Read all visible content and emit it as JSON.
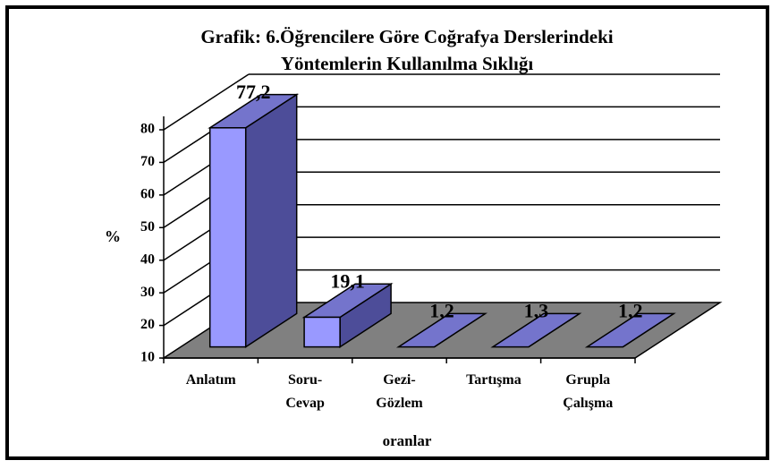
{
  "chart_data": {
    "type": "bar3d",
    "title": "Grafik: 6.Öğrencilere Göre Coğrafya Derslerindeki\nYöntemlerin Kullanılma Sıklığı",
    "ylabel": "%",
    "xlabel": "oranlar",
    "categories": [
      "Anlatım",
      "Soru-\nCevap",
      "Gezi-\nGözlem",
      "Tartışma",
      "Grupla\nÇalışma"
    ],
    "values": [
      77.2,
      19.1,
      1.2,
      1.3,
      1.2
    ],
    "value_labels": [
      "77,2",
      "19,1",
      "1,2",
      "1,3",
      "1,2"
    ],
    "color": "#9999ff",
    "ylim": [
      10,
      80
    ],
    "yticks": [
      10,
      20,
      30,
      40,
      50,
      60,
      70,
      80
    ],
    "grid": true
  }
}
